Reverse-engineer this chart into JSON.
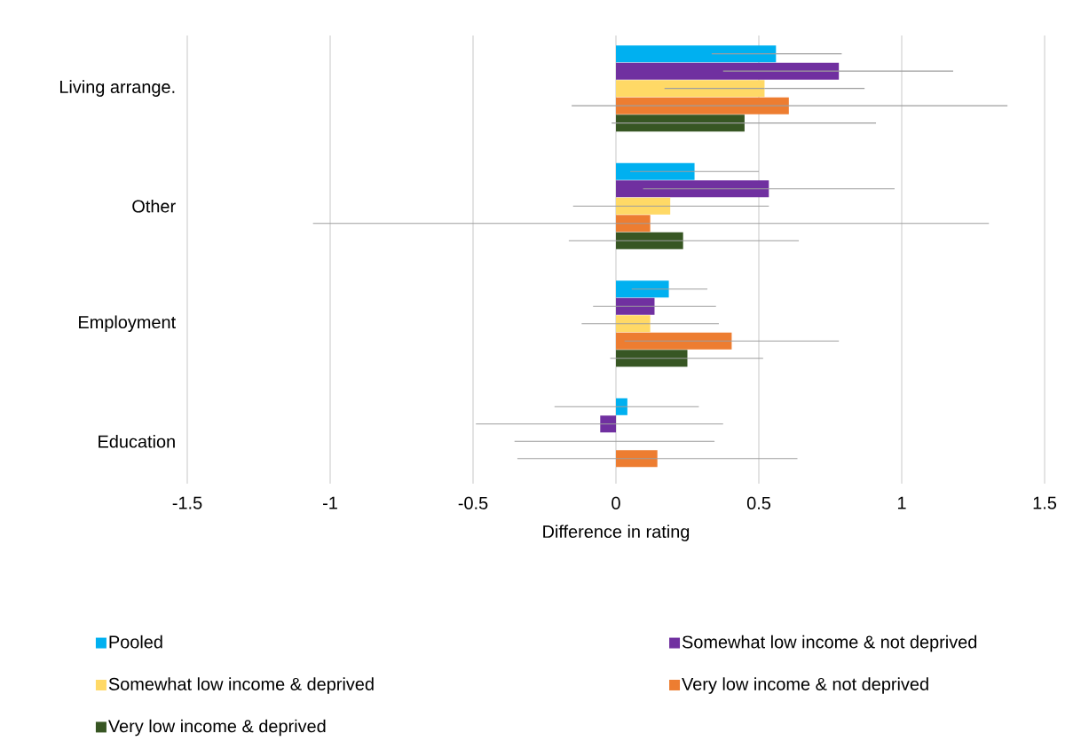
{
  "chart_data": {
    "type": "bar",
    "orientation": "horizontal",
    "xlabel": "Difference in rating",
    "categories": [
      "Living arrange.",
      "Other",
      "Employment",
      "Education"
    ],
    "series": [
      {
        "name": "Pooled",
        "color": "#00b0f0",
        "values": [
          0.56,
          0.275,
          0.185,
          0.04
        ],
        "errors": [
          [
            0.335,
            0.79
          ],
          [
            0.05,
            0.5
          ],
          [
            0.055,
            0.32
          ],
          [
            -0.215,
            0.29
          ]
        ]
      },
      {
        "name": "Somewhat low income & not deprived",
        "color": "#7030a0",
        "values": [
          0.78,
          0.535,
          0.135,
          -0.055
        ],
        "errors": [
          [
            0.375,
            1.18
          ],
          [
            0.095,
            0.975
          ],
          [
            -0.08,
            0.35
          ],
          [
            -0.49,
            0.375
          ]
        ]
      },
      {
        "name": "Somewhat low income & deprived",
        "color": "#ffd966",
        "values": [
          0.52,
          0.19,
          0.12,
          0
        ],
        "errors": [
          [
            0.17,
            0.87
          ],
          [
            -0.15,
            0.535
          ],
          [
            -0.12,
            0.36
          ],
          [
            -0.355,
            0.345
          ]
        ]
      },
      {
        "name": "Very low income & not deprived",
        "color": "#ed7d31",
        "values": [
          0.605,
          0.12,
          0.405,
          0.145
        ],
        "errors": [
          [
            -0.155,
            1.37
          ],
          [
            -1.06,
            1.305
          ],
          [
            0.03,
            0.78
          ],
          [
            -0.345,
            0.635
          ]
        ]
      },
      {
        "name": "Very low income & deprived",
        "color": "#375623",
        "values": [
          0.45,
          0.235,
          0.25,
          null
        ],
        "errors": [
          [
            -0.015,
            0.91
          ],
          [
            -0.165,
            0.64
          ],
          [
            -0.02,
            0.515
          ],
          null
        ]
      }
    ],
    "xlim": [
      -1.5,
      1.5
    ],
    "xticks": [
      -1.5,
      -1,
      -0.5,
      0,
      0.5,
      1,
      1.5
    ],
    "grid": "x",
    "legend": "bottom"
  }
}
